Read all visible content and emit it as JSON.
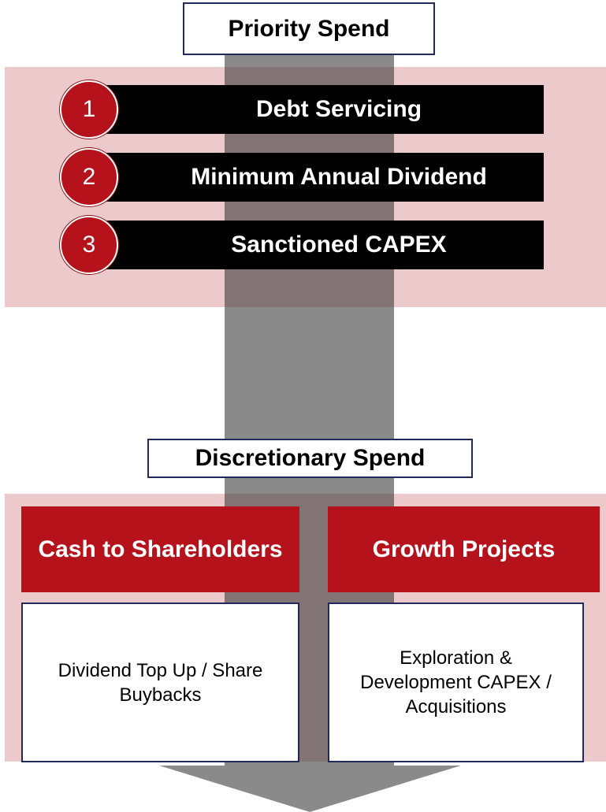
{
  "priority": {
    "title": "Priority Spend",
    "items": [
      {
        "number": "1",
        "label": "Debt Servicing"
      },
      {
        "number": "2",
        "label": "Minimum Annual Dividend"
      },
      {
        "number": "3",
        "label": "Sanctioned CAPEX"
      }
    ]
  },
  "discretionary": {
    "title": "Discretionary Spend",
    "columns": [
      {
        "heading": "Cash to Shareholders",
        "body": "Dividend Top Up / Share Buybacks"
      },
      {
        "heading": "Growth Projects",
        "body": "Exploration & Development CAPEX / Acquisitions"
      }
    ]
  }
}
